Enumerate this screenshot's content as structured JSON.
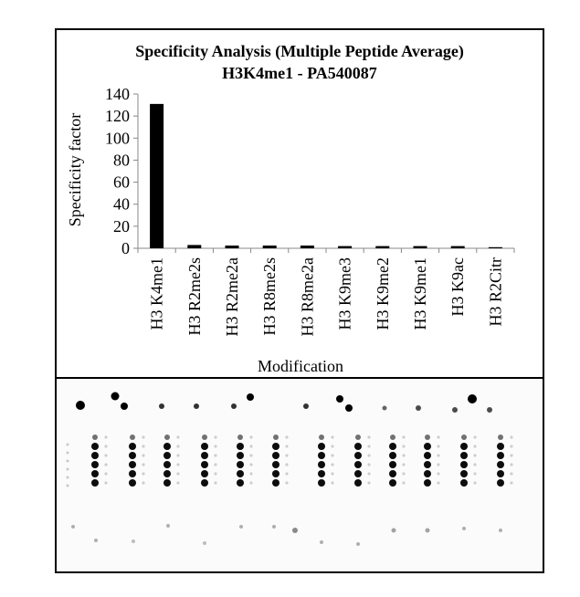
{
  "chart_data": {
    "type": "bar",
    "title": "Specificity Analysis  (Multiple Peptide Average)",
    "subtitle": "H3K4me1 - PA540087",
    "xlabel": "Modification",
    "ylabel": "Specificity factor",
    "ylim": [
      0,
      140
    ],
    "yticks": [
      0,
      20,
      40,
      60,
      80,
      100,
      120,
      140
    ],
    "grid": false,
    "legend": "none",
    "bar_color": "#000000",
    "categories": [
      "H3 K4me1",
      "H3 R2me2s",
      "H3 R2me2a",
      "H3 R8me2s",
      "H3 R8me2a",
      "H3 K9me3",
      "H3 K9me2",
      "H3 K9me1",
      "H3 K9ac",
      "H3 R2Citr"
    ],
    "values": [
      131,
      3,
      2.5,
      2.5,
      2.5,
      2,
      2,
      2,
      2,
      1
    ]
  },
  "blot": {
    "description_icon": "dot-blot-array-image"
  }
}
